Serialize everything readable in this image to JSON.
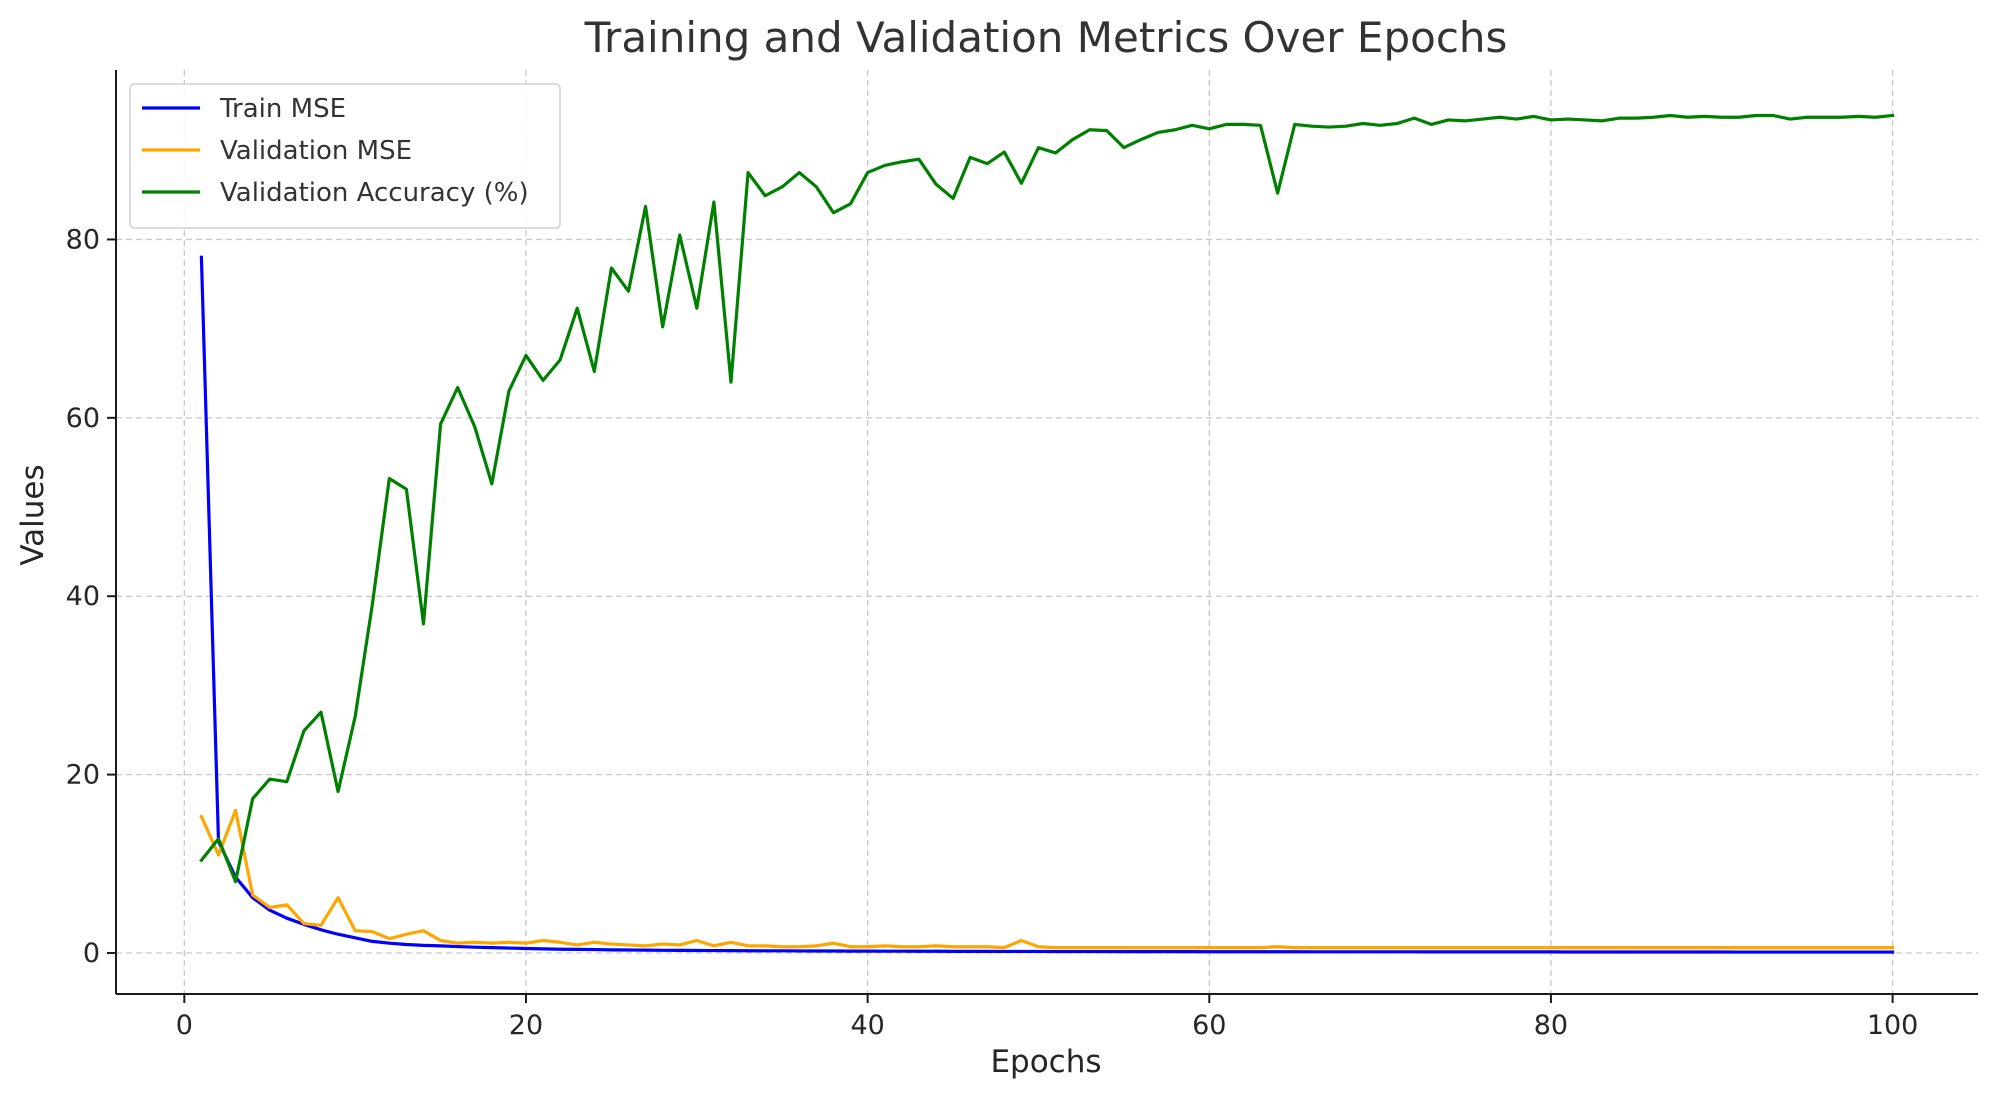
{
  "chart_data": {
    "type": "line",
    "title": "Training and Validation Metrics Over Epochs",
    "xlabel": "Epochs",
    "ylabel": "Values",
    "xlim": [
      -4,
      105
    ],
    "ylim": [
      -4.6,
      99
    ],
    "xticks": [
      0,
      20,
      40,
      60,
      80,
      100
    ],
    "yticks": [
      0,
      20,
      40,
      60,
      80
    ],
    "grid": true,
    "legend_position": "upper-left",
    "x": [
      1,
      2,
      3,
      4,
      5,
      6,
      7,
      8,
      9,
      10,
      11,
      12,
      13,
      14,
      15,
      16,
      17,
      18,
      19,
      20,
      21,
      22,
      23,
      24,
      25,
      26,
      27,
      28,
      29,
      30,
      31,
      32,
      33,
      34,
      35,
      36,
      37,
      38,
      39,
      40,
      41,
      42,
      43,
      44,
      45,
      46,
      47,
      48,
      49,
      50,
      51,
      52,
      53,
      54,
      55,
      56,
      57,
      58,
      59,
      60,
      61,
      62,
      63,
      64,
      65,
      66,
      67,
      68,
      69,
      70,
      71,
      72,
      73,
      74,
      75,
      76,
      77,
      78,
      79,
      80,
      81,
      82,
      83,
      84,
      85,
      86,
      87,
      88,
      89,
      90,
      91,
      92,
      93,
      94,
      95,
      96,
      97,
      98,
      99,
      100
    ],
    "series": [
      {
        "name": "Train MSE",
        "color": "#0000ff",
        "values": [
          78,
          12.5,
          8.5,
          6.2,
          4.8,
          3.9,
          3.2,
          2.6,
          2.1,
          1.7,
          1.3,
          1.1,
          0.95,
          0.85,
          0.8,
          0.72,
          0.65,
          0.6,
          0.55,
          0.5,
          0.46,
          0.42,
          0.4,
          0.38,
          0.35,
          0.33,
          0.32,
          0.3,
          0.29,
          0.28,
          0.27,
          0.26,
          0.25,
          0.24,
          0.24,
          0.23,
          0.22,
          0.22,
          0.21,
          0.21,
          0.2,
          0.2,
          0.19,
          0.19,
          0.18,
          0.18,
          0.18,
          0.17,
          0.17,
          0.17,
          0.16,
          0.16,
          0.16,
          0.16,
          0.15,
          0.15,
          0.15,
          0.15,
          0.15,
          0.14,
          0.14,
          0.14,
          0.14,
          0.14,
          0.14,
          0.13,
          0.13,
          0.13,
          0.13,
          0.13,
          0.13,
          0.13,
          0.12,
          0.12,
          0.12,
          0.12,
          0.12,
          0.12,
          0.12,
          0.12,
          0.11,
          0.11,
          0.11,
          0.11,
          0.11,
          0.11,
          0.11,
          0.11,
          0.11,
          0.11,
          0.1,
          0.1,
          0.1,
          0.1,
          0.1,
          0.1,
          0.1,
          0.1,
          0.1,
          0.1
        ]
      },
      {
        "name": "Validation MSE",
        "color": "#ffa500",
        "values": [
          15.3,
          11,
          16,
          6.5,
          5.1,
          5.4,
          3.3,
          3.1,
          6.2,
          2.5,
          2.4,
          1.6,
          2.1,
          2.5,
          1.4,
          1.1,
          1.2,
          1.1,
          1.2,
          1.1,
          1.4,
          1.2,
          0.9,
          1.2,
          1,
          0.9,
          0.8,
          1,
          0.9,
          1.4,
          0.8,
          1.2,
          0.8,
          0.8,
          0.7,
          0.7,
          0.8,
          1.1,
          0.7,
          0.7,
          0.8,
          0.7,
          0.7,
          0.8,
          0.7,
          0.7,
          0.7,
          0.6,
          1.4,
          0.7,
          0.6,
          0.6,
          0.6,
          0.6,
          0.6,
          0.6,
          0.6,
          0.6,
          0.6,
          0.6,
          0.6,
          0.6,
          0.6,
          0.7,
          0.6,
          0.6,
          0.6,
          0.6,
          0.6,
          0.6,
          0.6,
          0.6,
          0.6,
          0.6,
          0.6,
          0.6,
          0.6,
          0.6,
          0.6,
          0.6,
          0.6,
          0.6,
          0.6,
          0.6,
          0.6,
          0.6,
          0.6,
          0.6,
          0.6,
          0.6,
          0.6,
          0.6,
          0.6,
          0.6,
          0.6,
          0.6,
          0.6,
          0.6,
          0.6,
          0.6
        ]
      },
      {
        "name": "Validation Accuracy (%)",
        "color": "#008000",
        "values": [
          10.4,
          12.8,
          8,
          17.3,
          19.5,
          19.2,
          24.9,
          27,
          18.1,
          26.5,
          39,
          53.2,
          52,
          36.9,
          59.3,
          63.4,
          59,
          52.6,
          63,
          67,
          64.2,
          66.5,
          72.3,
          65.2,
          76.8,
          74.2,
          83.7,
          70.2,
          80.5,
          72.3,
          84.2,
          64,
          87.5,
          84.9,
          85.9,
          87.5,
          85.9,
          83,
          84,
          87.5,
          88.3,
          88.7,
          89,
          86.2,
          84.6,
          89.2,
          88.5,
          89.8,
          86.3,
          90.3,
          89.7,
          91.2,
          92.3,
          92.2,
          90.3,
          91.2,
          92,
          92.3,
          92.8,
          92.4,
          92.9,
          92.9,
          92.8,
          85.2,
          92.9,
          92.7,
          92.6,
          92.7,
          93,
          92.8,
          93,
          93.6,
          92.9,
          93.4,
          93.3,
          93.5,
          93.7,
          93.5,
          93.8,
          93.4,
          93.5,
          93.4,
          93.3,
          93.6,
          93.6,
          93.7,
          93.9,
          93.7,
          93.8,
          93.7,
          93.7,
          93.9,
          93.9,
          93.5,
          93.7,
          93.7,
          93.7,
          93.8,
          93.7,
          93.9
        ]
      }
    ]
  }
}
